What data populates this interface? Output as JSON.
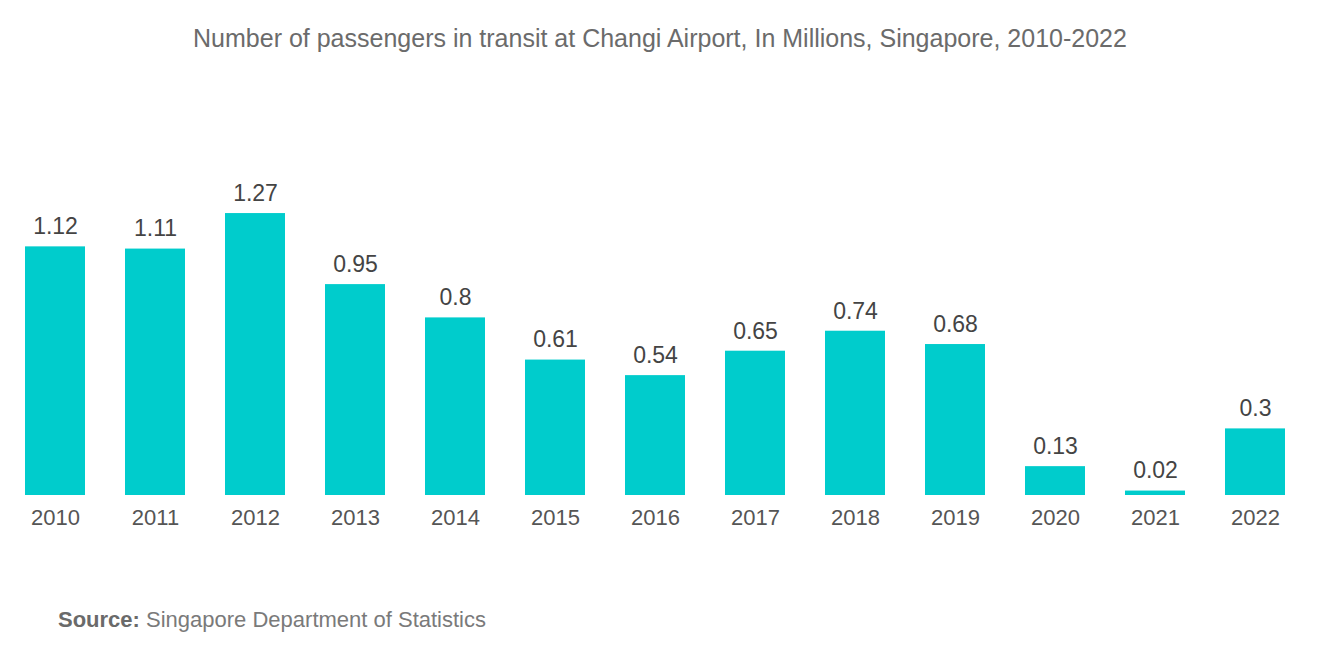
{
  "chart_data": {
    "type": "bar",
    "title": "Number of passengers in transit at Changi Airport, In Millions, Singapore, 2010-2022",
    "source_label": "Source:",
    "source": "Singapore Department of Statistics",
    "categories": [
      "2010",
      "2011",
      "2012",
      "2013",
      "2014",
      "2015",
      "2016",
      "2017",
      "2018",
      "2019",
      "2020",
      "2021",
      "2022"
    ],
    "values": [
      1.12,
      1.11,
      1.27,
      0.95,
      0.8,
      0.61,
      0.54,
      0.65,
      0.74,
      0.68,
      0.13,
      0.02,
      0.3
    ],
    "color": "#00cccc",
    "ylim": [
      0,
      1.5
    ],
    "grid": false,
    "data_labels": true,
    "tick_labels": "x"
  }
}
